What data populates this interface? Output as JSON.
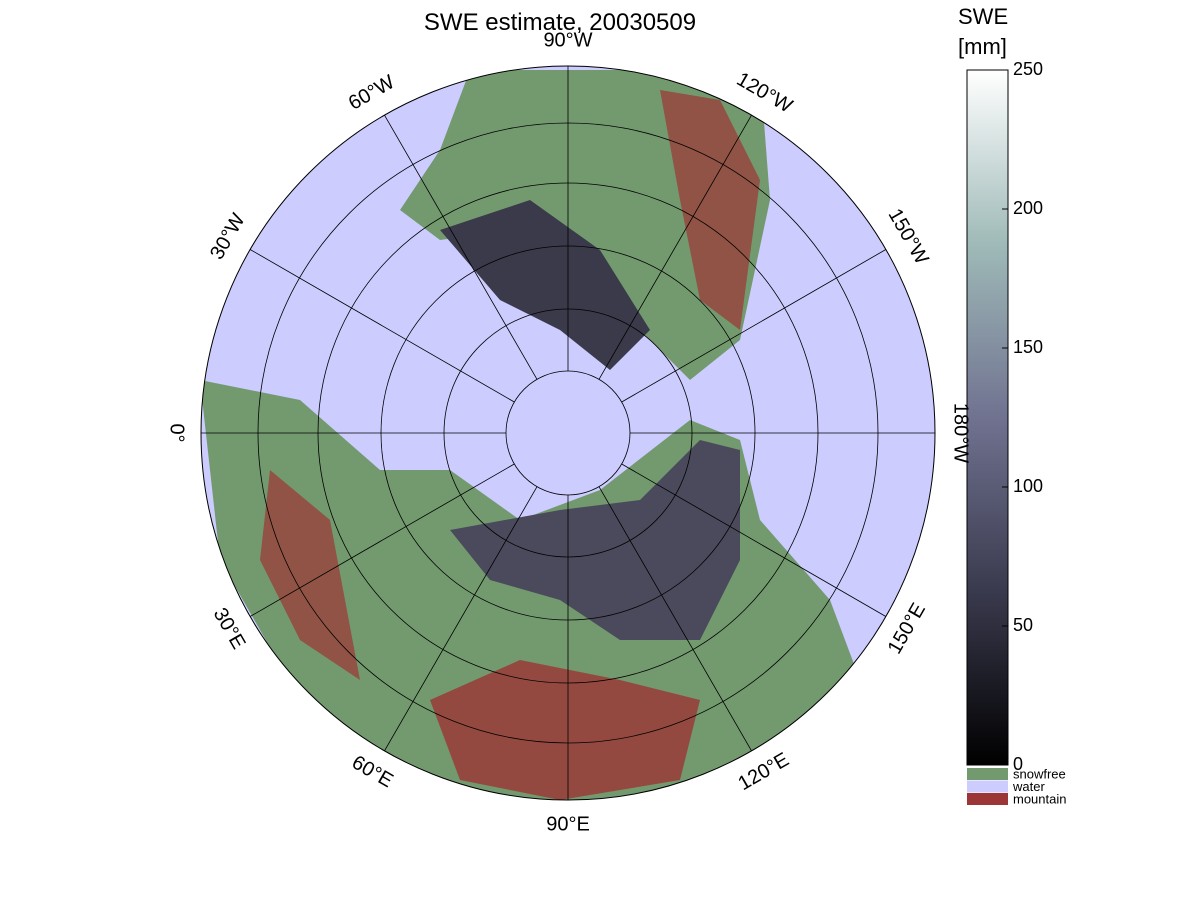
{
  "title": "SWE estimate, 20030509",
  "meridians": [
    {
      "value": -90,
      "label": "90°W"
    },
    {
      "value": -60,
      "label": "60°W"
    },
    {
      "value": -30,
      "label": "30°W"
    },
    {
      "value": 0,
      "label": "0°"
    },
    {
      "value": 30,
      "label": "30°E"
    },
    {
      "value": 60,
      "label": "60°E"
    },
    {
      "value": 90,
      "label": "90°E"
    },
    {
      "value": 120,
      "label": "120°E"
    },
    {
      "value": 150,
      "label": "150°E"
    },
    {
      "value": 180,
      "label": "180°W"
    },
    {
      "value": -150,
      "label": "150°W"
    },
    {
      "value": -120,
      "label": "120°W"
    }
  ],
  "colorbar": {
    "label": [
      "SWE",
      "[mm]"
    ],
    "lim": [
      0,
      250
    ],
    "ticks": [
      0,
      50,
      100,
      150,
      200,
      250
    ]
  },
  "legend": [
    {
      "name": "snowfree",
      "color": "#739a6f"
    },
    {
      "name": "water",
      "color": "#ccccff"
    },
    {
      "name": "mountain",
      "color": "#9c3535"
    }
  ]
}
